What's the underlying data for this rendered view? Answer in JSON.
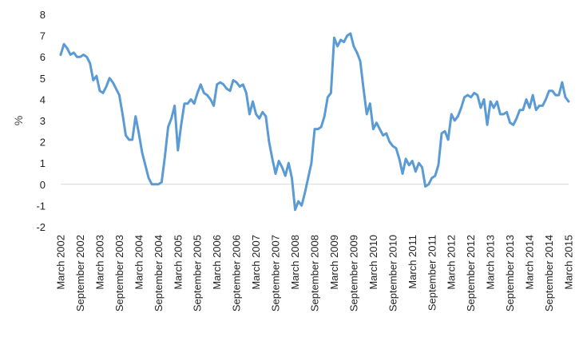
{
  "chart_data": {
    "type": "line",
    "title": "",
    "xlabel": "",
    "ylabel": "%",
    "ylim": [
      -2,
      8
    ],
    "yticks": [
      8,
      7,
      6,
      5,
      4,
      3,
      2,
      1,
      0,
      -1,
      -2
    ],
    "grid": false,
    "legend": "none",
    "line_color": "#5b9bd5",
    "x_tick_labels": [
      "March 2002",
      "September 2002",
      "March 2003",
      "September 2003",
      "March 2004",
      "September 2004",
      "March 2005",
      "September 2005",
      "March 2006",
      "September 2006",
      "March 2007",
      "September 2007",
      "March 2008",
      "September 2008",
      "March 2009",
      "September 2009",
      "March 2010",
      "September 2010",
      "March 2011",
      "September 2011",
      "March 2012",
      "September 2012",
      "March 2013",
      "September 2013",
      "March 2014",
      "September 2014",
      "March 2015"
    ],
    "series": [
      {
        "values": [
          6.1,
          6.6,
          6.4,
          6.1,
          6.2,
          6.0,
          6.0,
          6.1,
          6.0,
          5.7,
          4.9,
          5.1,
          4.4,
          4.3,
          4.6,
          5.0,
          4.8,
          4.5,
          4.2,
          3.3,
          2.3,
          2.1,
          2.1,
          3.2,
          2.4,
          1.5,
          0.9,
          0.3,
          0.0,
          0.0,
          0.0,
          0.1,
          1.3,
          2.7,
          3.1,
          3.7,
          1.6,
          2.8,
          3.8,
          3.8,
          4.0,
          3.8,
          4.3,
          4.7,
          4.3,
          4.2,
          4.0,
          3.7,
          4.7,
          4.8,
          4.7,
          4.5,
          4.4,
          4.9,
          4.8,
          4.6,
          4.7,
          4.3,
          3.3,
          3.9,
          3.3,
          3.1,
          3.4,
          3.2,
          2.0,
          1.2,
          0.5,
          1.1,
          0.8,
          0.4,
          1.0,
          0.3,
          -1.2,
          -0.8,
          -1.0,
          -0.4,
          0.3,
          1.0,
          2.6,
          2.6,
          2.7,
          3.2,
          4.1,
          4.3,
          6.9,
          6.5,
          6.8,
          6.7,
          7.0,
          7.1,
          6.5,
          6.2,
          5.8,
          4.5,
          3.3,
          3.8,
          2.6,
          2.9,
          2.6,
          2.3,
          2.4,
          2.0,
          1.8,
          1.7,
          1.2,
          0.5,
          1.2,
          0.9,
          1.1,
          0.6,
          1.0,
          0.8,
          -0.1,
          0.0,
          0.3,
          0.4,
          0.9,
          2.4,
          2.5,
          2.1,
          3.3,
          3.0,
          3.2,
          3.6,
          4.1,
          4.2,
          4.1,
          4.3,
          4.2,
          3.6,
          4.0,
          2.8,
          3.9,
          3.6,
          3.9,
          3.3,
          3.3,
          3.4,
          2.9,
          2.8,
          3.1,
          3.5,
          3.5,
          4.0,
          3.6,
          4.2,
          3.5,
          3.7,
          3.7,
          4.0,
          4.4,
          4.4,
          4.2,
          4.2,
          4.8,
          4.1,
          3.9
        ]
      }
    ]
  }
}
